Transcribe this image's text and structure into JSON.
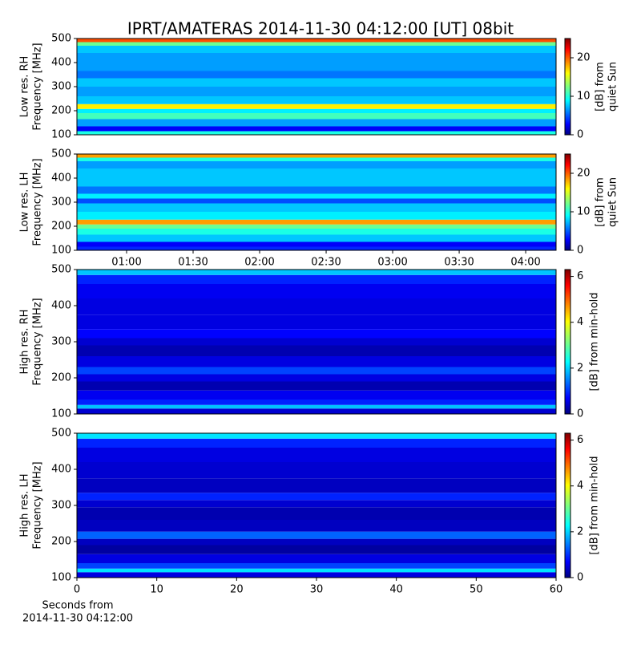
{
  "chart_data": [
    {
      "type": "heatmap",
      "title": "IPRT/AMATERAS 2014-11-30 04:12:00 [UT]   08bit",
      "ylabel": [
        "Low res. RH",
        "Frequency [MHz]"
      ],
      "ylim": [
        100,
        500
      ],
      "yticks": [
        100,
        200,
        300,
        400,
        500
      ],
      "xlim": [
        37.6,
        253.7
      ],
      "frequencies": [
        110,
        120,
        150,
        180,
        200,
        215,
        240,
        280,
        320,
        350,
        380,
        420,
        460,
        480,
        490
      ],
      "values": [
        10,
        3,
        7,
        11,
        9,
        16,
        8,
        7,
        8,
        6,
        7,
        7,
        8,
        12,
        20
      ],
      "colorbar": {
        "label": [
          "[dB] from",
          "quiet Sun"
        ],
        "lim": [
          0,
          25
        ],
        "ticks": [
          0,
          10,
          20
        ]
      }
    },
    {
      "type": "heatmap",
      "ylabel": [
        "Low res. LH",
        "Frequency [MHz]"
      ],
      "ylim": [
        100,
        500
      ],
      "yticks": [
        100,
        200,
        300,
        400,
        500
      ],
      "xlim": [
        37.6,
        253.7
      ],
      "xticks": [
        {
          "value": 60,
          "label": "01:00"
        },
        {
          "value": 90,
          "label": "01:30"
        },
        {
          "value": 120,
          "label": "02:00"
        },
        {
          "value": 150,
          "label": "02:30"
        },
        {
          "value": 180,
          "label": "03:00"
        },
        {
          "value": 210,
          "label": "03:30"
        },
        {
          "value": 240,
          "label": "04:00"
        }
      ],
      "frequencies": [
        110,
        120,
        150,
        180,
        200,
        215,
        240,
        280,
        310,
        320,
        350,
        380,
        420,
        460,
        480,
        490
      ],
      "values": [
        4,
        3,
        8,
        10,
        12,
        18,
        9,
        8,
        5,
        9,
        6,
        8,
        8,
        7,
        10,
        18
      ],
      "colorbar": {
        "label": [
          "[dB] from",
          "quiet Sun"
        ],
        "lim": [
          0,
          25
        ],
        "ticks": [
          0,
          10,
          20
        ]
      }
    },
    {
      "type": "heatmap",
      "ylabel": [
        "High res. RH",
        "Frequency [MHz]"
      ],
      "ylim": [
        100,
        500
      ],
      "yticks": [
        100,
        200,
        300,
        400,
        500
      ],
      "xlim": [
        0,
        60
      ],
      "frequencies": [
        110,
        120,
        130,
        150,
        180,
        200,
        220,
        240,
        280,
        300,
        320,
        350,
        400,
        440,
        480,
        490
      ],
      "values": [
        0.5,
        2.0,
        1.0,
        0.7,
        0.3,
        0.6,
        1.2,
        0.6,
        0.3,
        0.5,
        0.8,
        0.6,
        0.6,
        0.7,
        1.0,
        2.0
      ],
      "colorbar": {
        "label": [
          "[dB] from min-hold"
        ],
        "lim": [
          0,
          6.3
        ],
        "ticks": [
          0,
          2,
          4,
          6
        ]
      }
    },
    {
      "type": "heatmap",
      "ylabel": [
        "High res. LH",
        "Frequency [MHz]"
      ],
      "ylim": [
        100,
        500
      ],
      "yticks": [
        100,
        200,
        300,
        400,
        500
      ],
      "xlim": [
        0,
        60
      ],
      "xticks": [
        0,
        10,
        20,
        30,
        40,
        50,
        60
      ],
      "xlabel": [
        "Seconds from",
        "2014-11-30 04:12:00"
      ],
      "frequencies": [
        110,
        120,
        130,
        150,
        180,
        200,
        215,
        240,
        280,
        310,
        320,
        350,
        400,
        440,
        480,
        490
      ],
      "values": [
        0.6,
        2.2,
        1.2,
        0.6,
        0.2,
        0.4,
        1.4,
        0.4,
        0.3,
        0.5,
        1.0,
        0.4,
        0.5,
        0.6,
        1.0,
        2.2
      ],
      "colorbar": {
        "label": [
          "[dB] from min-hold"
        ],
        "lim": [
          0,
          6.3
        ],
        "ticks": [
          0,
          2,
          4,
          6
        ]
      }
    }
  ]
}
